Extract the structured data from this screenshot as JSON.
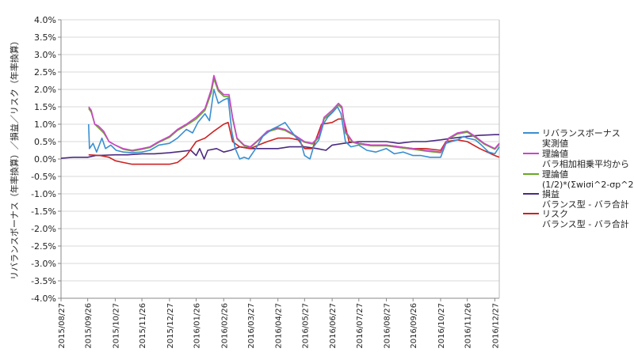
{
  "chart_data": {
    "type": "line",
    "ylabel": "リバランスボーナス（年率換算）／損益／リスク（年率換算）",
    "xlabel": "",
    "ylim": [
      -4.0,
      4.0
    ],
    "y_ticks": [
      "4.0%",
      "3.5%",
      "3.0%",
      "2.5%",
      "2.0%",
      "1.5%",
      "1.0%",
      "0.5%",
      "0.0%",
      "-0.5%",
      "-1.0%",
      "-1.5%",
      "-2.0%",
      "-2.5%",
      "-3.0%",
      "-3.5%",
      "-4.0%"
    ],
    "x_ticks": [
      "2015/08/27",
      "2015/09/26",
      "2015/10/27",
      "2015/11/26",
      "2015/12/27",
      "2016/01/26",
      "2016/02/26",
      "2016/03/27",
      "2016/04/27",
      "2016/05/27",
      "2016/06/27",
      "2016/07/27",
      "2016/08/27",
      "2016/09/26",
      "2016/10/27",
      "2016/11/26",
      "2016/12/27"
    ],
    "grid": "horizontal",
    "legend_position": "right",
    "series": [
      {
        "name_line1": "リバランスボーナス",
        "name_line2": "実測値",
        "color": "#3a8fd0",
        "points": [
          [
            "2015/09/27",
            1.0
          ],
          [
            "2015/09/28",
            0.3
          ],
          [
            "2015/10/02",
            0.45
          ],
          [
            "2015/10/06",
            0.2
          ],
          [
            "2015/10/12",
            0.6
          ],
          [
            "2015/10/16",
            0.3
          ],
          [
            "2015/10/22",
            0.4
          ],
          [
            "2015/10/28",
            0.25
          ],
          [
            "2015/11/05",
            0.2
          ],
          [
            "2015/11/15",
            0.18
          ],
          [
            "2015/11/26",
            0.2
          ],
          [
            "2015/12/05",
            0.25
          ],
          [
            "2015/12/15",
            0.4
          ],
          [
            "2015/12/27",
            0.45
          ],
          [
            "2016/01/05",
            0.6
          ],
          [
            "2016/01/15",
            0.85
          ],
          [
            "2016/01/22",
            0.75
          ],
          [
            "2016/01/28",
            1.05
          ],
          [
            "2016/02/05",
            1.3
          ],
          [
            "2016/02/10",
            1.1
          ],
          [
            "2016/02/15",
            2.0
          ],
          [
            "2016/02/20",
            1.6
          ],
          [
            "2016/02/26",
            1.7
          ],
          [
            "2016/03/02",
            1.75
          ],
          [
            "2016/03/06",
            0.8
          ],
          [
            "2016/03/10",
            0.3
          ],
          [
            "2016/03/15",
            0.0
          ],
          [
            "2016/03/20",
            0.05
          ],
          [
            "2016/03/25",
            0.0
          ],
          [
            "2016/04/02",
            0.3
          ],
          [
            "2016/04/10",
            0.65
          ],
          [
            "2016/04/20",
            0.85
          ],
          [
            "2016/04/28",
            0.95
          ],
          [
            "2016/05/05",
            1.05
          ],
          [
            "2016/05/12",
            0.8
          ],
          [
            "2016/05/18",
            0.6
          ],
          [
            "2016/05/22",
            0.55
          ],
          [
            "2016/05/27",
            0.1
          ],
          [
            "2016/06/02",
            0.0
          ],
          [
            "2016/06/06",
            0.35
          ],
          [
            "2016/06/12",
            0.55
          ],
          [
            "2016/06/17",
            1.0
          ],
          [
            "2016/06/22",
            1.2
          ],
          [
            "2016/06/28",
            1.35
          ],
          [
            "2016/07/03",
            1.5
          ],
          [
            "2016/07/07",
            1.3
          ],
          [
            "2016/07/12",
            0.5
          ],
          [
            "2016/07/18",
            0.35
          ],
          [
            "2016/07/27",
            0.4
          ],
          [
            "2016/08/05",
            0.25
          ],
          [
            "2016/08/15",
            0.2
          ],
          [
            "2016/08/27",
            0.3
          ],
          [
            "2016/09/05",
            0.15
          ],
          [
            "2016/09/15",
            0.2
          ],
          [
            "2016/09/26",
            0.1
          ],
          [
            "2016/10/05",
            0.1
          ],
          [
            "2016/10/15",
            0.05
          ],
          [
            "2016/10/27",
            0.05
          ],
          [
            "2016/11/02",
            0.45
          ],
          [
            "2016/11/08",
            0.5
          ],
          [
            "2016/11/15",
            0.55
          ],
          [
            "2016/11/22",
            0.65
          ],
          [
            "2016/11/26",
            0.6
          ],
          [
            "2016/12/05",
            0.55
          ],
          [
            "2016/12/12",
            0.4
          ],
          [
            "2016/12/20",
            0.2
          ],
          [
            "2016/12/27",
            0.15
          ],
          [
            "2017/01/01",
            0.35
          ]
        ]
      },
      {
        "name_line1": "理論値",
        "name_line2": "バラ相加相乗平均から",
        "color": "#cc44cc",
        "points": [
          [
            "2015/09/27",
            1.5
          ],
          [
            "2015/09/30",
            1.4
          ],
          [
            "2015/10/04",
            1.0
          ],
          [
            "2015/10/08",
            0.95
          ],
          [
            "2015/10/14",
            0.8
          ],
          [
            "2015/10/20",
            0.5
          ],
          [
            "2015/10/27",
            0.4
          ],
          [
            "2015/11/05",
            0.3
          ],
          [
            "2015/11/15",
            0.25
          ],
          [
            "2015/11/26",
            0.3
          ],
          [
            "2015/12/05",
            0.35
          ],
          [
            "2015/12/15",
            0.5
          ],
          [
            "2015/12/27",
            0.65
          ],
          [
            "2016/01/05",
            0.85
          ],
          [
            "2016/01/15",
            1.0
          ],
          [
            "2016/01/26",
            1.2
          ],
          [
            "2016/02/05",
            1.45
          ],
          [
            "2016/02/12",
            2.0
          ],
          [
            "2016/02/15",
            2.4
          ],
          [
            "2016/02/20",
            2.0
          ],
          [
            "2016/02/26",
            1.85
          ],
          [
            "2016/03/03",
            1.85
          ],
          [
            "2016/03/07",
            1.2
          ],
          [
            "2016/03/12",
            0.6
          ],
          [
            "2016/03/20",
            0.4
          ],
          [
            "2016/03/27",
            0.35
          ],
          [
            "2016/04/05",
            0.55
          ],
          [
            "2016/04/15",
            0.8
          ],
          [
            "2016/04/27",
            0.9
          ],
          [
            "2016/05/05",
            0.85
          ],
          [
            "2016/05/15",
            0.7
          ],
          [
            "2016/05/27",
            0.5
          ],
          [
            "2016/06/05",
            0.45
          ],
          [
            "2016/06/12",
            0.65
          ],
          [
            "2016/06/18",
            1.2
          ],
          [
            "2016/06/27",
            1.4
          ],
          [
            "2016/07/04",
            1.6
          ],
          [
            "2016/07/08",
            1.5
          ],
          [
            "2016/07/12",
            0.8
          ],
          [
            "2016/07/20",
            0.5
          ],
          [
            "2016/07/27",
            0.45
          ],
          [
            "2016/08/10",
            0.4
          ],
          [
            "2016/08/27",
            0.4
          ],
          [
            "2016/09/10",
            0.35
          ],
          [
            "2016/09/26",
            0.3
          ],
          [
            "2016/10/10",
            0.25
          ],
          [
            "2016/10/27",
            0.2
          ],
          [
            "2016/11/05",
            0.6
          ],
          [
            "2016/11/15",
            0.75
          ],
          [
            "2016/11/26",
            0.8
          ],
          [
            "2016/12/05",
            0.65
          ],
          [
            "2016/12/15",
            0.45
          ],
          [
            "2016/12/27",
            0.3
          ],
          [
            "2017/01/01",
            0.45
          ]
        ]
      },
      {
        "name_line1": "理論値",
        "name_line2": "(1/2)*(Σwiσi^2-σp^2)",
        "color": "#66aa22",
        "points": [
          [
            "2015/09/27",
            1.45
          ],
          [
            "2015/09/30",
            1.35
          ],
          [
            "2015/10/04",
            1.0
          ],
          [
            "2015/10/08",
            0.9
          ],
          [
            "2015/10/14",
            0.75
          ],
          [
            "2015/10/20",
            0.5
          ],
          [
            "2015/10/27",
            0.4
          ],
          [
            "2015/11/05",
            0.28
          ],
          [
            "2015/11/15",
            0.23
          ],
          [
            "2015/11/26",
            0.28
          ],
          [
            "2015/12/05",
            0.33
          ],
          [
            "2015/12/15",
            0.48
          ],
          [
            "2015/12/27",
            0.62
          ],
          [
            "2016/01/05",
            0.82
          ],
          [
            "2016/01/15",
            0.97
          ],
          [
            "2016/01/26",
            1.15
          ],
          [
            "2016/02/05",
            1.4
          ],
          [
            "2016/02/12",
            1.9
          ],
          [
            "2016/02/15",
            2.3
          ],
          [
            "2016/02/20",
            1.95
          ],
          [
            "2016/02/26",
            1.8
          ],
          [
            "2016/03/03",
            1.8
          ],
          [
            "2016/03/07",
            1.15
          ],
          [
            "2016/03/12",
            0.58
          ],
          [
            "2016/03/20",
            0.38
          ],
          [
            "2016/03/27",
            0.33
          ],
          [
            "2016/04/05",
            0.53
          ],
          [
            "2016/04/15",
            0.78
          ],
          [
            "2016/04/27",
            0.87
          ],
          [
            "2016/05/05",
            0.82
          ],
          [
            "2016/05/15",
            0.68
          ],
          [
            "2016/05/27",
            0.48
          ],
          [
            "2016/06/05",
            0.43
          ],
          [
            "2016/06/12",
            0.62
          ],
          [
            "2016/06/18",
            1.15
          ],
          [
            "2016/06/27",
            1.35
          ],
          [
            "2016/07/04",
            1.55
          ],
          [
            "2016/07/08",
            1.45
          ],
          [
            "2016/07/12",
            0.75
          ],
          [
            "2016/07/20",
            0.48
          ],
          [
            "2016/07/27",
            0.43
          ],
          [
            "2016/08/10",
            0.38
          ],
          [
            "2016/08/27",
            0.38
          ],
          [
            "2016/09/10",
            0.33
          ],
          [
            "2016/09/26",
            0.28
          ],
          [
            "2016/10/10",
            0.23
          ],
          [
            "2016/10/27",
            0.18
          ],
          [
            "2016/11/05",
            0.58
          ],
          [
            "2016/11/15",
            0.72
          ],
          [
            "2016/11/26",
            0.77
          ],
          [
            "2016/12/05",
            0.62
          ],
          [
            "2016/12/15",
            0.43
          ],
          [
            "2016/12/27",
            0.28
          ],
          [
            "2017/01/01",
            0.42
          ]
        ]
      },
      {
        "name_line1": "損益",
        "name_line2": "バランス型 - バラ合計",
        "color": "#4b2a80",
        "points": [
          [
            "2015/08/27",
            0.02
          ],
          [
            "2015/09/10",
            0.05
          ],
          [
            "2015/09/26",
            0.05
          ],
          [
            "2015/10/05",
            0.1
          ],
          [
            "2015/10/27",
            0.12
          ],
          [
            "2015/11/10",
            0.12
          ],
          [
            "2015/11/26",
            0.15
          ],
          [
            "2015/12/10",
            0.15
          ],
          [
            "2015/12/27",
            0.18
          ],
          [
            "2016/01/10",
            0.22
          ],
          [
            "2016/01/20",
            0.25
          ],
          [
            "2016/01/26",
            0.1
          ],
          [
            "2016/01/30",
            0.3
          ],
          [
            "2016/02/04",
            0.0
          ],
          [
            "2016/02/08",
            0.25
          ],
          [
            "2016/02/18",
            0.3
          ],
          [
            "2016/02/26",
            0.2
          ],
          [
            "2016/03/05",
            0.25
          ],
          [
            "2016/03/15",
            0.35
          ],
          [
            "2016/03/27",
            0.3
          ],
          [
            "2016/04/10",
            0.3
          ],
          [
            "2016/04/27",
            0.3
          ],
          [
            "2016/05/10",
            0.35
          ],
          [
            "2016/05/27",
            0.35
          ],
          [
            "2016/06/10",
            0.3
          ],
          [
            "2016/06/20",
            0.25
          ],
          [
            "2016/06/27",
            0.4
          ],
          [
            "2016/07/10",
            0.45
          ],
          [
            "2016/07/27",
            0.5
          ],
          [
            "2016/08/10",
            0.5
          ],
          [
            "2016/08/27",
            0.5
          ],
          [
            "2016/09/10",
            0.45
          ],
          [
            "2016/09/26",
            0.5
          ],
          [
            "2016/10/10",
            0.5
          ],
          [
            "2016/10/27",
            0.55
          ],
          [
            "2016/11/10",
            0.6
          ],
          [
            "2016/11/26",
            0.65
          ],
          [
            "2016/12/10",
            0.68
          ],
          [
            "2016/12/27",
            0.7
          ],
          [
            "2017/01/01",
            0.7
          ]
        ]
      },
      {
        "name_line1": "リスク",
        "name_line2": "バランス型 - バラ合計",
        "color": "#cc2222",
        "points": [
          [
            "2015/09/27",
            0.12
          ],
          [
            "2015/10/10",
            0.1
          ],
          [
            "2015/10/20",
            0.05
          ],
          [
            "2015/10/27",
            -0.05
          ],
          [
            "2015/11/05",
            -0.1
          ],
          [
            "2015/11/15",
            -0.15
          ],
          [
            "2015/11/26",
            -0.15
          ],
          [
            "2015/12/10",
            -0.15
          ],
          [
            "2015/12/27",
            -0.15
          ],
          [
            "2016/01/05",
            -0.1
          ],
          [
            "2016/01/15",
            0.1
          ],
          [
            "2016/01/26",
            0.5
          ],
          [
            "2016/02/05",
            0.6
          ],
          [
            "2016/02/15",
            0.8
          ],
          [
            "2016/02/26",
            1.0
          ],
          [
            "2016/03/02",
            1.05
          ],
          [
            "2016/03/07",
            0.5
          ],
          [
            "2016/03/15",
            0.35
          ],
          [
            "2016/03/27",
            0.3
          ],
          [
            "2016/04/05",
            0.4
          ],
          [
            "2016/04/15",
            0.5
          ],
          [
            "2016/04/27",
            0.6
          ],
          [
            "2016/05/10",
            0.6
          ],
          [
            "2016/05/20",
            0.55
          ],
          [
            "2016/05/27",
            0.3
          ],
          [
            "2016/06/05",
            0.3
          ],
          [
            "2016/06/15",
            1.0
          ],
          [
            "2016/06/27",
            1.05
          ],
          [
            "2016/07/04",
            1.15
          ],
          [
            "2016/07/10",
            1.15
          ],
          [
            "2016/07/16",
            0.5
          ],
          [
            "2016/07/27",
            0.45
          ],
          [
            "2016/08/10",
            0.4
          ],
          [
            "2016/08/27",
            0.4
          ],
          [
            "2016/09/10",
            0.35
          ],
          [
            "2016/09/26",
            0.3
          ],
          [
            "2016/10/10",
            0.3
          ],
          [
            "2016/10/27",
            0.25
          ],
          [
            "2016/11/02",
            0.5
          ],
          [
            "2016/11/15",
            0.55
          ],
          [
            "2016/11/26",
            0.5
          ],
          [
            "2016/12/10",
            0.3
          ],
          [
            "2016/12/27",
            0.1
          ],
          [
            "2017/01/01",
            0.05
          ]
        ]
      }
    ]
  }
}
